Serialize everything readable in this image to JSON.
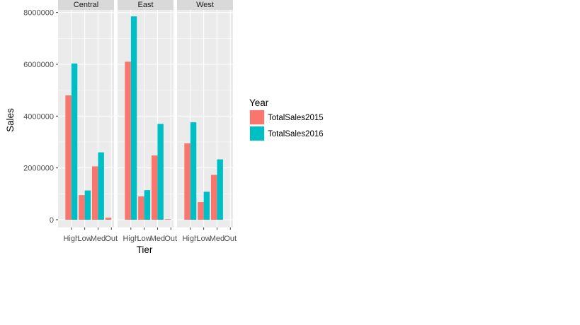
{
  "chart_data": {
    "type": "bar",
    "facets": [
      "Central",
      "East",
      "West"
    ],
    "categories": [
      "High",
      "Low",
      "Med",
      "Out"
    ],
    "xlabel": "Tier",
    "ylabel": "Sales",
    "ylim": [
      -300000,
      8100000
    ],
    "yticks": [
      0,
      2000000,
      4000000,
      6000000,
      8000000
    ],
    "ytick_labels": [
      "0",
      "2000000",
      "4000000",
      "6000000",
      "8000000"
    ],
    "grid": true,
    "legend": {
      "title": "Year",
      "position": "right",
      "entries": [
        {
          "label": "TotalSales2015",
          "color": "#F8766D"
        },
        {
          "label": "TotalSales2016",
          "color": "#00BFC4"
        }
      ]
    },
    "series": [
      {
        "name": "TotalSales2015",
        "color": "#F8766D",
        "values": {
          "Central": [
            4800000,
            950000,
            2060000,
            80000
          ],
          "East": [
            6100000,
            900000,
            2480000,
            20000
          ],
          "West": [
            2950000,
            680000,
            1730000,
            0
          ]
        }
      },
      {
        "name": "TotalSales2016",
        "color": "#00BFC4",
        "values": {
          "Central": [
            6030000,
            1130000,
            2600000,
            0
          ],
          "East": [
            7850000,
            1140000,
            3700000,
            0
          ],
          "West": [
            3760000,
            1080000,
            2330000,
            0
          ]
        }
      }
    ]
  }
}
